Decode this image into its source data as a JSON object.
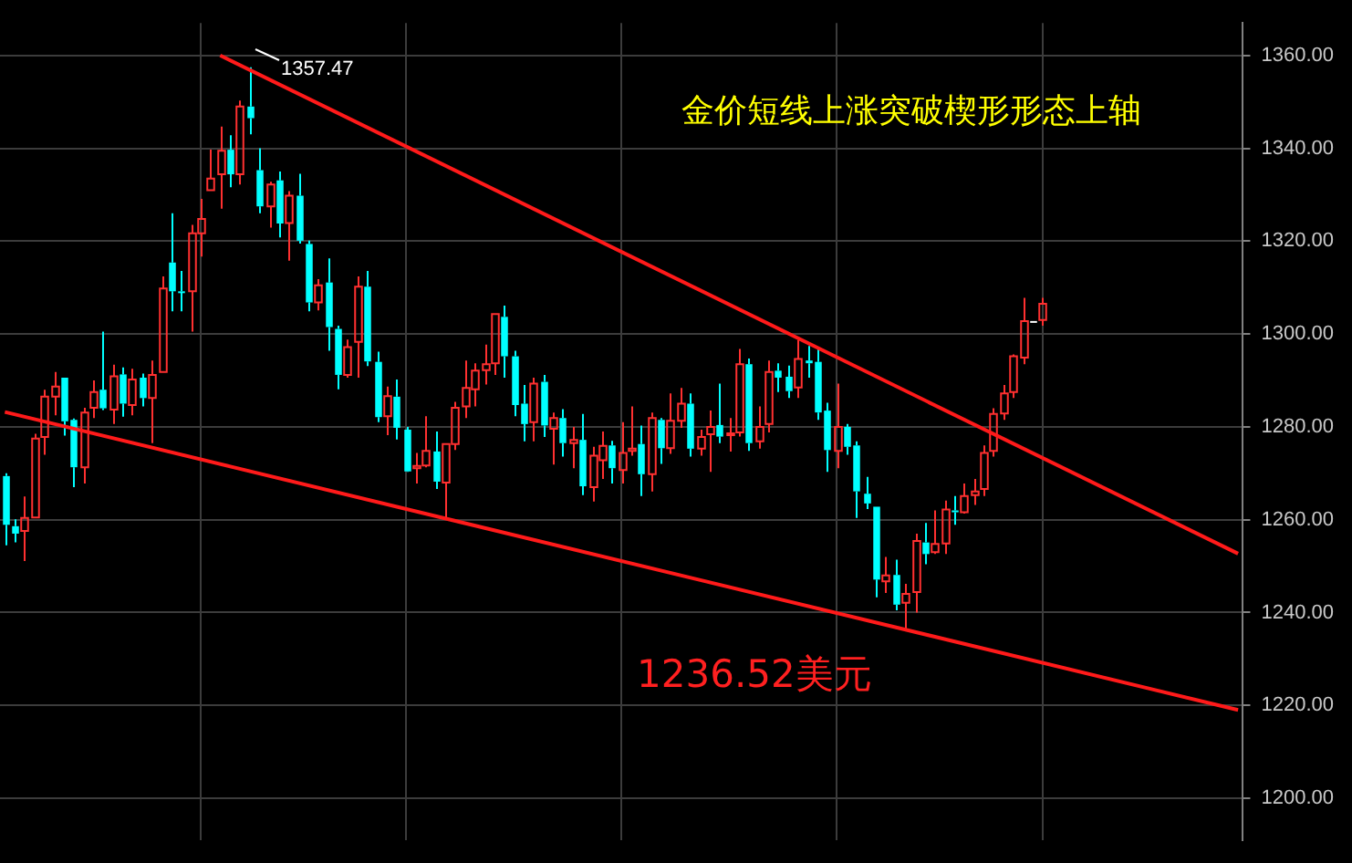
{
  "chart_data": {
    "type": "candlestick",
    "title": "金价短线上涨突破楔形形态上轴",
    "annotations": [
      "1357.47",
      "1236.52美元"
    ],
    "categories": [
      null,
      null,
      null,
      null,
      null,
      null,
      null,
      null,
      null,
      null,
      null,
      null,
      null,
      null,
      null,
      null,
      null,
      null,
      null,
      null,
      null,
      null,
      null,
      null,
      null,
      null,
      null,
      null,
      null,
      null,
      null,
      null,
      null,
      null,
      null,
      null,
      null,
      null,
      null,
      null,
      null,
      null,
      null,
      null,
      null,
      null,
      null,
      null,
      null,
      null,
      null,
      null,
      null,
      null,
      null,
      null,
      null,
      null,
      null,
      null,
      null,
      null,
      null,
      null,
      null,
      null,
      null,
      null,
      null,
      null,
      null,
      null,
      null,
      null,
      null,
      null,
      null,
      null,
      null,
      null,
      null,
      null,
      null,
      null,
      null,
      null,
      null,
      null,
      null,
      null,
      null,
      null,
      null,
      null,
      null,
      null,
      null,
      null,
      null,
      null,
      null,
      null,
      null,
      null,
      null,
      null,
      null,
      null,
      null,
      null,
      null,
      null,
      null,
      null,
      null,
      null,
      null,
      null,
      null,
      null,
      null,
      null,
      null,
      null,
      null,
      null,
      null
    ],
    "ylim": [
      1191,
      1367
    ],
    "yticks": [
      {
        "value": 1200,
        "label": "1200.00"
      },
      {
        "value": 1220,
        "label": "1220.00"
      },
      {
        "value": 1240,
        "label": "1240.00"
      },
      {
        "value": 1260,
        "label": "1260.00"
      },
      {
        "value": 1280,
        "label": "1280.00"
      },
      {
        "value": 1300,
        "label": "1300.00"
      },
      {
        "value": 1320,
        "label": "1320.00"
      },
      {
        "value": 1340,
        "label": "1340.00"
      },
      {
        "value": 1360,
        "label": "1360.00"
      }
    ],
    "grid": true,
    "series": [
      {
        "ohlc": [
          [
            1269.4,
            1270,
            1254.5,
            1258.9
          ],
          [
            1258.6,
            1260.1,
            1255.1,
            1257
          ],
          [
            1257.6,
            1265,
            1251.1,
            1260.4
          ],
          [
            1260.5,
            1278.5,
            1260.5,
            1277.5
          ],
          [
            1277.8,
            1288,
            1274,
            1286.5
          ],
          [
            1286.5,
            1291.8,
            1282.5,
            1288.7
          ],
          [
            1290.6,
            1290.6,
            1278.1,
            1281.2
          ],
          [
            1281.5,
            1281.8,
            1267,
            1271.3
          ],
          [
            1271.3,
            1284.1,
            1267.8,
            1283.1
          ],
          [
            1284.1,
            1290,
            1281.9,
            1287.5
          ],
          [
            1288,
            1300.5,
            1283.6,
            1284
          ],
          [
            1283.7,
            1293.4,
            1280.6,
            1290.9
          ],
          [
            1291.3,
            1292.8,
            1282.2,
            1285
          ],
          [
            1284.7,
            1292.5,
            1282.5,
            1290.2
          ],
          [
            1290.6,
            1291.5,
            1284.4,
            1286.2
          ],
          [
            1286.2,
            1294.3,
            1276.5,
            1291.2
          ],
          [
            1291.8,
            1312.4,
            1291.8,
            1309.8
          ],
          [
            1315.4,
            1326,
            1304.9,
            1309.2
          ],
          [
            1309.2,
            1313.6,
            1304.9,
            1308.9
          ],
          [
            1309.2,
            1323.5,
            1300.5,
            1321.7
          ],
          [
            1321.7,
            1329.1,
            1316.7,
            1324.8
          ],
          [
            1331,
            1339.7,
            1331,
            1333.5
          ],
          [
            1334.4,
            1344.7,
            1327,
            1339.5
          ],
          [
            1339.7,
            1342.8,
            1331.6,
            1334.4
          ],
          [
            1334.4,
            1350.3,
            1332.2,
            1349
          ],
          [
            1349,
            1357.47,
            1343,
            1346.5
          ],
          [
            1335.3,
            1340,
            1326,
            1327.5
          ],
          [
            1327.5,
            1332.8,
            1322.9,
            1332.2
          ],
          [
            1333.1,
            1335,
            1320.8,
            1323.8
          ],
          [
            1323.9,
            1330.8,
            1315.8,
            1329.8
          ],
          [
            1329.8,
            1334.5,
            1319.5,
            1320.1
          ],
          [
            1319.4,
            1320.1,
            1304.9,
            1306.8
          ],
          [
            1306.8,
            1311.8,
            1305.1,
            1310.5
          ],
          [
            1311.1,
            1316.3,
            1296.4,
            1301.5
          ],
          [
            1301.1,
            1301.8,
            1288.1,
            1291.2
          ],
          [
            1291.2,
            1298.8,
            1290.6,
            1297.2
          ],
          [
            1298.3,
            1312.4,
            1290.6,
            1310.2
          ],
          [
            1310.2,
            1313.6,
            1293.1,
            1294.1
          ],
          [
            1294,
            1296.2,
            1281,
            1282.1
          ],
          [
            1282.3,
            1288.7,
            1278.2,
            1286.6
          ],
          [
            1286.5,
            1290.2,
            1277.3,
            1279.8
          ],
          [
            1279.4,
            1280,
            1270.3,
            1270.4
          ],
          [
            1271.1,
            1274.4,
            1267.8,
            1271.6
          ],
          [
            1271.7,
            1282.3,
            1271.3,
            1274.8
          ],
          [
            1274.7,
            1279,
            1266.6,
            1268.2
          ],
          [
            1268,
            1276.3,
            1260.1,
            1276.3
          ],
          [
            1276.3,
            1285.4,
            1275,
            1284.1
          ],
          [
            1284.4,
            1294.3,
            1281.9,
            1288.4
          ],
          [
            1288.1,
            1293.7,
            1284.4,
            1292.1
          ],
          [
            1292.2,
            1297.7,
            1289.1,
            1293.5
          ],
          [
            1293.7,
            1304.3,
            1291.2,
            1304.3
          ],
          [
            1303.7,
            1306.1,
            1290.6,
            1295.2
          ],
          [
            1295.2,
            1296.4,
            1282.3,
            1284.7
          ],
          [
            1285,
            1289,
            1276.9,
            1280.6
          ],
          [
            1281,
            1290.6,
            1276.9,
            1289.3
          ],
          [
            1289.7,
            1291.2,
            1277.8,
            1280.3
          ],
          [
            1279.6,
            1283.1,
            1271.9,
            1281.9
          ],
          [
            1281.9,
            1283.8,
            1273.6,
            1276.5
          ],
          [
            1276.5,
            1280,
            1271.1,
            1277.2
          ],
          [
            1277.2,
            1282.8,
            1265.3,
            1267.2
          ],
          [
            1267,
            1275.7,
            1263.9,
            1273.8
          ],
          [
            1272.8,
            1279,
            1268.8,
            1275.9
          ],
          [
            1276,
            1277,
            1267.8,
            1271.1
          ],
          [
            1270.7,
            1281,
            1267.8,
            1274.4
          ],
          [
            1274.8,
            1284.4,
            1273.8,
            1275.3
          ],
          [
            1276.3,
            1280.3,
            1265.1,
            1269.8
          ],
          [
            1269.8,
            1283.1,
            1266.1,
            1281.9
          ],
          [
            1281.5,
            1281.9,
            1272,
            1275.4
          ],
          [
            1275.4,
            1287.2,
            1274.2,
            1281.3
          ],
          [
            1281.3,
            1288.4,
            1279.8,
            1285
          ],
          [
            1285,
            1287.2,
            1273.6,
            1275.3
          ],
          [
            1275.3,
            1279.4,
            1273.8,
            1277.8
          ],
          [
            1278.4,
            1283.5,
            1270.3,
            1280
          ],
          [
            1280.4,
            1289.3,
            1276.5,
            1277.9
          ],
          [
            1278.4,
            1281.9,
            1274.7,
            1278.6
          ],
          [
            1278.8,
            1296.8,
            1277.9,
            1293.5
          ],
          [
            1293.5,
            1294.7,
            1274.8,
            1276.5
          ],
          [
            1276.9,
            1284.4,
            1275.3,
            1280
          ],
          [
            1280.6,
            1294.3,
            1278.8,
            1291.8
          ],
          [
            1292.1,
            1293.7,
            1287.5,
            1290.6
          ],
          [
            1290.8,
            1293.2,
            1286.2,
            1287.7
          ],
          [
            1288.5,
            1298.7,
            1286.2,
            1294.6
          ],
          [
            1294.3,
            1297.4,
            1290.6,
            1293.7
          ],
          [
            1294,
            1296.8,
            1281.5,
            1283.1
          ],
          [
            1283.5,
            1285.2,
            1270.3,
            1275
          ],
          [
            1274.8,
            1289.3,
            1271.1,
            1280
          ],
          [
            1280,
            1280.6,
            1274,
            1275.7
          ],
          [
            1276,
            1276.9,
            1260.4,
            1266.1
          ],
          [
            1265.6,
            1269.2,
            1262.3,
            1263.5
          ],
          [
            1262.8,
            1262.8,
            1243.3,
            1247.1
          ],
          [
            1246.7,
            1252,
            1244.2,
            1248
          ],
          [
            1248.1,
            1251.4,
            1240.5,
            1241.7
          ],
          [
            1242.1,
            1246.2,
            1236.52,
            1244
          ],
          [
            1244.4,
            1257,
            1240,
            1255.4
          ],
          [
            1255.1,
            1259.3,
            1250.4,
            1252.6
          ],
          [
            1253,
            1262,
            1252.6,
            1254.8
          ],
          [
            1254.9,
            1264.1,
            1252.6,
            1262.2
          ],
          [
            1262,
            1265.1,
            1258.9,
            1261.6
          ],
          [
            1261.6,
            1267.8,
            1261.3,
            1265.1
          ],
          [
            1265.3,
            1268.8,
            1263.2,
            1266.1
          ],
          [
            1266.6,
            1276,
            1265.1,
            1274.4
          ],
          [
            1274.8,
            1284,
            1273.6,
            1282.8
          ],
          [
            1282.9,
            1289,
            1281.5,
            1287.2
          ],
          [
            1287.5,
            1295.6,
            1286.2,
            1295.2
          ],
          [
            1294.9,
            1307.8,
            1293.5,
            1302.8
          ],
          [
            1302.8,
            1302.8,
            1302.8,
            1302.8
          ],
          [
            1303,
            1307.8,
            1301.8,
            1306.5
          ],
          null,
          null,
          null,
          null,
          null,
          null,
          null,
          null,
          null,
          null,
          null,
          null,
          null,
          null,
          null,
          null,
          null,
          null,
          null,
          null
        ],
        "colors": [
          "#00ffff",
          "#00ffff",
          "#ff3030",
          "#ff3030",
          "#ff3030",
          "#ff3030",
          "#00ffff",
          "#00ffff",
          "#ff3030",
          "#ff3030",
          "#00ffff",
          "#ff3030",
          "#00ffff",
          "#ff3030",
          "#00ffff",
          "#ff3030",
          "#ff3030",
          "#00ffff",
          "#00ffff",
          "#ff3030",
          "#ff3030",
          "#ff3030",
          "#ff3030",
          "#00ffff",
          "#ff3030",
          "#00ffff",
          "#00ffff",
          "#ff3030",
          "#00ffff",
          "#ff3030",
          "#00ffff",
          "#00ffff",
          "#ff3030",
          "#00ffff",
          "#00ffff",
          "#ff3030",
          "#ff3030",
          "#00ffff",
          "#00ffff",
          "#ff3030",
          "#00ffff",
          "#00ffff",
          "#ff3030",
          "#ff3030",
          "#00ffff",
          "#ff3030",
          "#ff3030",
          "#ff3030",
          "#ff3030",
          "#ff3030",
          "#ff3030",
          "#00ffff",
          "#00ffff",
          "#00ffff",
          "#ff3030",
          "#00ffff",
          "#ff3030",
          "#00ffff",
          "#ff3030",
          "#00ffff",
          "#ff3030",
          "#ff3030",
          "#00ffff",
          "#ff3030",
          "#ff3030",
          "#00ffff",
          "#ff3030",
          "#00ffff",
          "#ff3030",
          "#ff3030",
          "#00ffff",
          "#ff3030",
          "#ff3030",
          "#00ffff",
          "#ff3030",
          "#ff3030",
          "#00ffff",
          "#ff3030",
          "#ff3030",
          "#00ffff",
          "#00ffff",
          "#ff3030",
          "#00ffff",
          "#00ffff",
          "#00ffff",
          "#ff3030",
          "#00ffff",
          "#00ffff",
          "#00ffff",
          "#00ffff",
          "#ff3030",
          "#00ffff",
          "#ff3030",
          "#ff3030",
          "#00ffff",
          "#ff3030",
          "#ff3030",
          "#00ffff",
          "#ff3030",
          "#ff3030",
          "#ff3030",
          "#ff3030",
          "#ff3030",
          "#ff3030",
          "#ff3030",
          "#ffffff",
          "#ff3030",
          null,
          null,
          null,
          null,
          null,
          null,
          null,
          null,
          null,
          null,
          null,
          null,
          null,
          null,
          null,
          null,
          null,
          null,
          null,
          null
        ]
      },
      {
        "type": "line",
        "color": "#ff1a1a",
        "values": [
          null,
          null,
          null,
          null,
          null,
          null,
          null,
          null,
          null,
          null,
          null,
          null,
          null,
          null,
          null,
          null,
          null,
          null,
          null,
          null,
          null,
          null,
          1360.0,
          null,
          null,
          null,
          null,
          null,
          null,
          null,
          null,
          null,
          null,
          null,
          null,
          null,
          null,
          null,
          null,
          null,
          null,
          null,
          null,
          null,
          null,
          null,
          null,
          null,
          null,
          null,
          null,
          null,
          null,
          null,
          null,
          null,
          null,
          null,
          null,
          null,
          null,
          null,
          null,
          null,
          null,
          null,
          null,
          null,
          null,
          null,
          null,
          null,
          null,
          null,
          null,
          null,
          null,
          null,
          null,
          null,
          null,
          null,
          null,
          null,
          null,
          null,
          null,
          null,
          null,
          null,
          null,
          null,
          null,
          null,
          null,
          null,
          null,
          null,
          null,
          null,
          null,
          null,
          null,
          null,
          null,
          null,
          null,
          null,
          null,
          null,
          null,
          null,
          null,
          null,
          null,
          null,
          null,
          null,
          null,
          null,
          null,
          null,
          null,
          null,
          null,
          null,
          1252.7
        ]
      },
      {
        "type": "line",
        "color": "#ff1a1a",
        "values": [
          1283.2,
          null,
          null,
          null,
          null,
          null,
          null,
          null,
          null,
          null,
          null,
          null,
          null,
          null,
          null,
          null,
          null,
          null,
          null,
          null,
          null,
          null,
          null,
          null,
          null,
          null,
          null,
          null,
          null,
          null,
          null,
          null,
          null,
          null,
          null,
          null,
          null,
          null,
          null,
          null,
          null,
          null,
          null,
          null,
          null,
          null,
          null,
          null,
          null,
          null,
          null,
          null,
          null,
          null,
          null,
          null,
          null,
          null,
          null,
          null,
          null,
          null,
          null,
          null,
          null,
          null,
          null,
          null,
          null,
          null,
          null,
          null,
          null,
          null,
          null,
          null,
          null,
          null,
          null,
          null,
          null,
          null,
          null,
          null,
          null,
          null,
          null,
          null,
          null,
          null,
          null,
          null,
          null,
          null,
          null,
          null,
          null,
          null,
          null,
          null,
          null,
          null,
          null,
          null,
          null,
          null,
          null,
          null,
          null,
          null,
          null,
          null,
          null,
          null,
          null,
          null,
          null,
          null,
          null,
          null,
          null,
          null,
          null,
          null,
          null,
          null,
          1219.0
        ]
      }
    ]
  }
}
